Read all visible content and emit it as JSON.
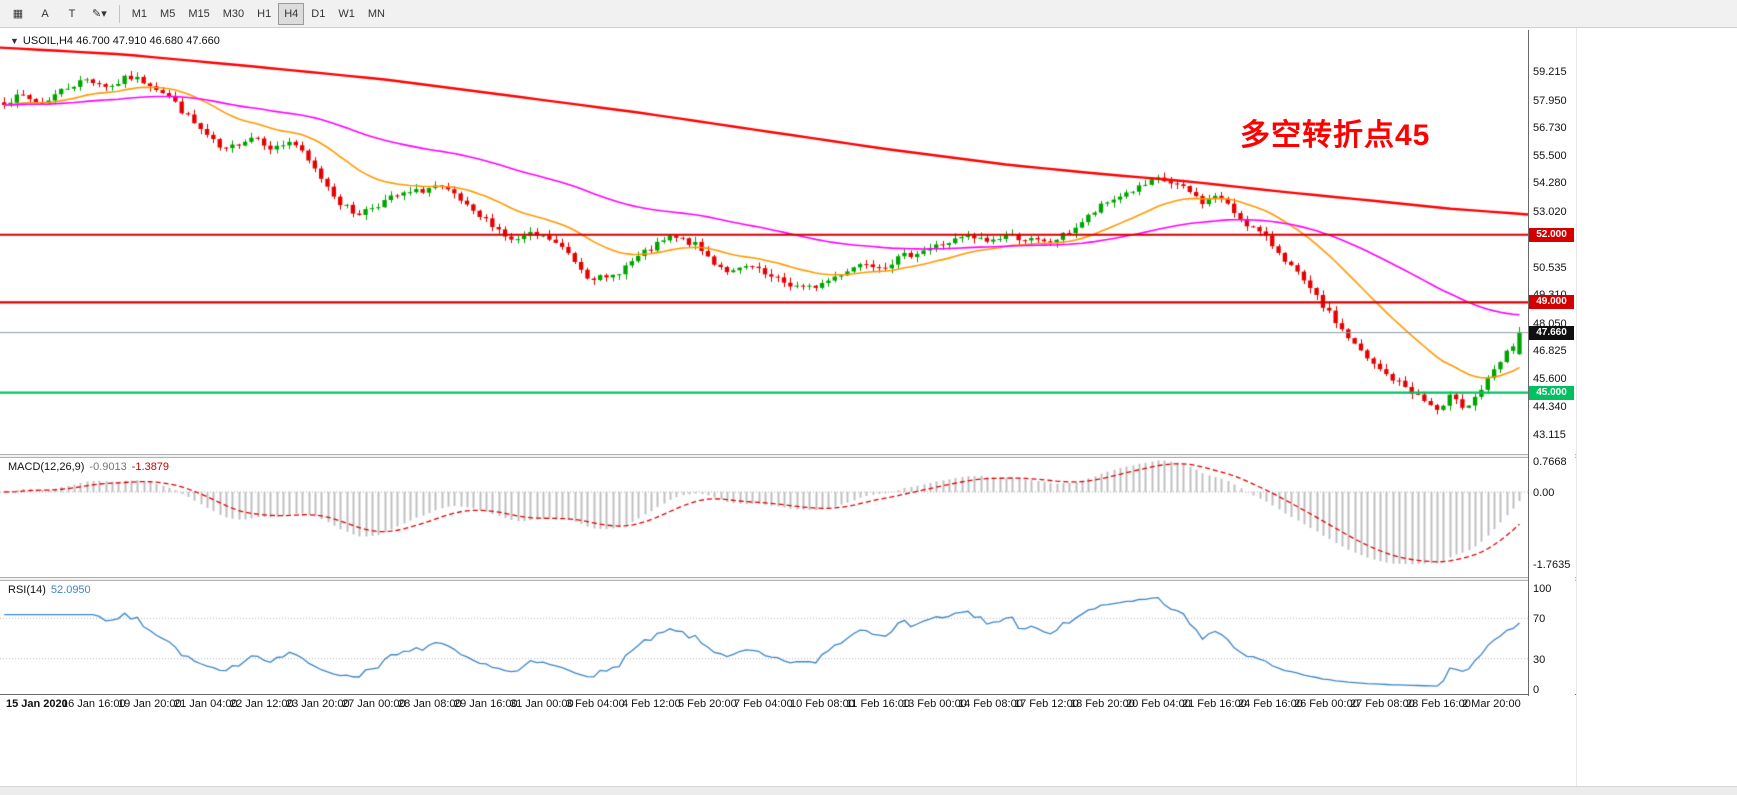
{
  "colors": {
    "up": "#00a300",
    "down": "#e60000",
    "ma_fast": "#ff9900",
    "ma_mid": "#ff00ff",
    "ma_slow": "#ff0000",
    "resistance_line": "#d40000",
    "support_line": "#00c060",
    "current_price_line": "#8c9aa8",
    "macd_bar": "#bdbdbd",
    "macd_signal": "#e00000",
    "rsi_line": "#3d85c8",
    "annotation": "#ff0000"
  },
  "toolbar": {
    "icon_buttons": [
      {
        "name": "chart-grid-icon",
        "glyph": "▦"
      },
      {
        "name": "annotate-a-icon",
        "glyph": "A"
      },
      {
        "name": "text-tool-icon",
        "glyph": "T"
      },
      {
        "name": "drawing-tools-dropdown-icon",
        "glyph": "✎▾"
      }
    ],
    "timeframes": [
      "M1",
      "M5",
      "M15",
      "M30",
      "H1",
      "H4",
      "D1",
      "W1",
      "MN"
    ],
    "active_timeframe": "H4"
  },
  "chart": {
    "symbol_caret": "▼",
    "symbol_label": "USOIL,H4 46.700 47.910 46.680 47.660",
    "annotation": "多空转折点45",
    "price_axis_labels": [
      59.215,
      57.95,
      56.73,
      55.5,
      54.28,
      53.02,
      51.795,
      50.535,
      49.31,
      48.05,
      46.825,
      45.6,
      44.34,
      43.115
    ],
    "hlines": [
      {
        "price": 52.0,
        "label": "52.000",
        "type": "resistance"
      },
      {
        "price": 49.0,
        "label": "49.000",
        "type": "resistance"
      },
      {
        "price": 45.0,
        "label": "45.000",
        "type": "support"
      }
    ],
    "current_price": {
      "price": 47.66,
      "label": "47.660"
    }
  },
  "macd": {
    "name": "MACD(12,26,9)",
    "value_main": "-0.9013",
    "value_signal": "-1.3879",
    "axis_labels": [
      "0.7668",
      "0.00",
      "-1.7635"
    ]
  },
  "rsi": {
    "name": "RSI(14)",
    "value": "52.0950",
    "axis_labels": [
      "100",
      "70",
      "30",
      "0"
    ],
    "levels": [
      70,
      30
    ]
  },
  "time_axis": [
    "15 Jan 2020",
    "16 Jan 16:00",
    "19 Jan 20:00",
    "21 Jan 04:00",
    "22 Jan 12:00",
    "23 Jan 20:00",
    "27 Jan 00:00",
    "28 Jan 08:00",
    "29 Jan 16:00",
    "31 Jan 00:00",
    "3 Feb 04:00",
    "4 Feb 12:00",
    "5 Feb 20:00",
    "7 Feb 04:00",
    "10 Feb 08:00",
    "11 Feb 16:00",
    "13 Feb 00:00",
    "14 Feb 08:00",
    "17 Feb 12:00",
    "18 Feb 20:00",
    "20 Feb 04:00",
    "21 Feb 16:00",
    "24 Feb 16:00",
    "26 Feb 00:00",
    "27 Feb 08:00",
    "28 Feb 16:00",
    "2 Mar 20:00"
  ],
  "chart_data": {
    "type": "candlestick",
    "symbol": "USOIL",
    "timeframe": "H4",
    "ohlc_current": {
      "open": 46.7,
      "high": 47.91,
      "low": 46.68,
      "close": 47.66
    },
    "price_range": [
      42.2,
      61.1
    ],
    "candle_count": 240,
    "seed": 7,
    "noise": 0.3,
    "close_anchors": [
      [
        0,
        57.9
      ],
      [
        0.012,
        58.15
      ],
      [
        0.024,
        57.8
      ],
      [
        0.04,
        58.5
      ],
      [
        0.055,
        58.9
      ],
      [
        0.07,
        58.55
      ],
      [
        0.082,
        59.0
      ],
      [
        0.095,
        58.75
      ],
      [
        0.108,
        58.2
      ],
      [
        0.12,
        57.3
      ],
      [
        0.132,
        56.5
      ],
      [
        0.145,
        55.65
      ],
      [
        0.155,
        56.1
      ],
      [
        0.165,
        56.4
      ],
      [
        0.178,
        55.8
      ],
      [
        0.19,
        56.2
      ],
      [
        0.2,
        55.3
      ],
      [
        0.212,
        54.3
      ],
      [
        0.222,
        53.4
      ],
      [
        0.232,
        52.9
      ],
      [
        0.245,
        53.3
      ],
      [
        0.258,
        53.7
      ],
      [
        0.272,
        53.9
      ],
      [
        0.285,
        54.15
      ],
      [
        0.298,
        53.7
      ],
      [
        0.31,
        52.9
      ],
      [
        0.322,
        52.5
      ],
      [
        0.335,
        51.7
      ],
      [
        0.348,
        52.0
      ],
      [
        0.36,
        51.8
      ],
      [
        0.372,
        51.2
      ],
      [
        0.385,
        50.2
      ],
      [
        0.398,
        50.0
      ],
      [
        0.41,
        50.6
      ],
      [
        0.425,
        51.3
      ],
      [
        0.44,
        51.9
      ],
      [
        0.455,
        51.6
      ],
      [
        0.468,
        50.8
      ],
      [
        0.48,
        50.3
      ],
      [
        0.492,
        50.6
      ],
      [
        0.505,
        50.1
      ],
      [
        0.518,
        49.8
      ],
      [
        0.53,
        49.6
      ],
      [
        0.542,
        49.9
      ],
      [
        0.555,
        50.4
      ],
      [
        0.568,
        50.8
      ],
      [
        0.58,
        50.6
      ],
      [
        0.592,
        51.0
      ],
      [
        0.605,
        51.3
      ],
      [
        0.62,
        51.6
      ],
      [
        0.635,
        51.9
      ],
      [
        0.65,
        51.7
      ],
      [
        0.662,
        52.0
      ],
      [
        0.675,
        51.8
      ],
      [
        0.688,
        51.6
      ],
      [
        0.7,
        52.0
      ],
      [
        0.712,
        52.6
      ],
      [
        0.725,
        53.3
      ],
      [
        0.738,
        53.8
      ],
      [
        0.75,
        54.1
      ],
      [
        0.762,
        54.45
      ],
      [
        0.772,
        54.25
      ],
      [
        0.782,
        53.9
      ],
      [
        0.792,
        53.4
      ],
      [
        0.8,
        53.8
      ],
      [
        0.81,
        53.1
      ],
      [
        0.82,
        52.5
      ],
      [
        0.83,
        52.0
      ],
      [
        0.842,
        51.2
      ],
      [
        0.854,
        50.2
      ],
      [
        0.866,
        49.2
      ],
      [
        0.878,
        48.2
      ],
      [
        0.89,
        47.2
      ],
      [
        0.902,
        46.3
      ],
      [
        0.914,
        45.7
      ],
      [
        0.926,
        45.2
      ],
      [
        0.938,
        44.6
      ],
      [
        0.948,
        44.1
      ],
      [
        0.956,
        45.0
      ],
      [
        0.964,
        44.3
      ],
      [
        0.972,
        44.9
      ],
      [
        0.98,
        45.6
      ],
      [
        0.988,
        46.4
      ],
      [
        1,
        47.5
      ]
    ],
    "ma_fast_period": 21,
    "ma_mid_period": 72,
    "ma_slow_anchors": [
      [
        0,
        60.3
      ],
      [
        0.08,
        60.0
      ],
      [
        0.16,
        59.5
      ],
      [
        0.25,
        58.9
      ],
      [
        0.33,
        58.2
      ],
      [
        0.42,
        57.4
      ],
      [
        0.5,
        56.6
      ],
      [
        0.58,
        55.8
      ],
      [
        0.66,
        55.1
      ],
      [
        0.72,
        54.7
      ],
      [
        0.78,
        54.35
      ],
      [
        0.84,
        53.9
      ],
      [
        0.9,
        53.5
      ],
      [
        0.95,
        53.15
      ],
      [
        1,
        52.9
      ]
    ],
    "macd_axis_range": [
      0.7668,
      -1.7635
    ],
    "rsi_last": 52.095
  }
}
